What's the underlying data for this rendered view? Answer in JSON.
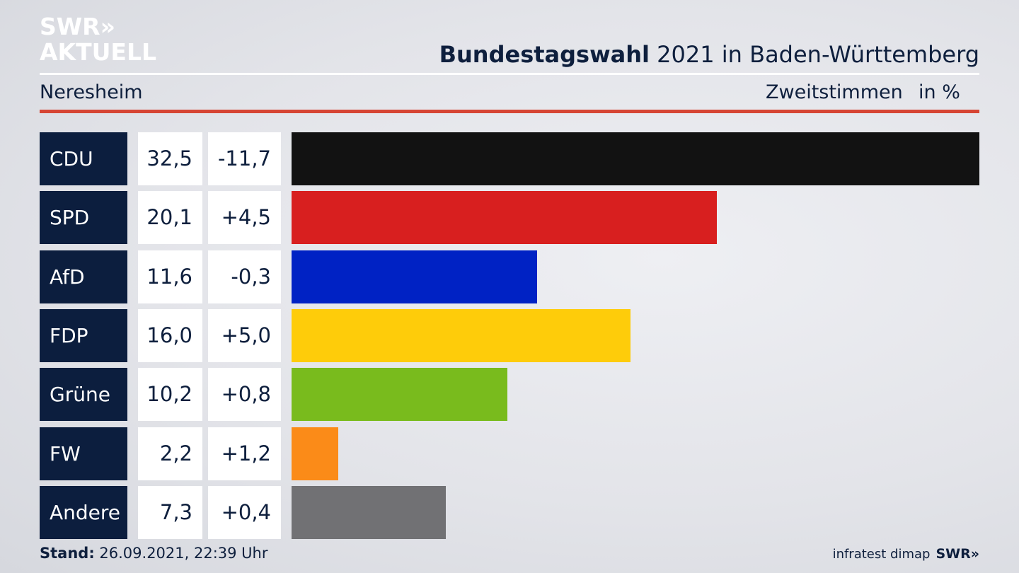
{
  "header": {
    "logo_line1": "SWR»",
    "logo_line2": "AKTUELL",
    "title_bold": "Bundestagswahl",
    "title_rest": " 2021 in Baden-Württemberg",
    "region": "Neresheim",
    "vote_type": "Zweitstimmen",
    "unit": "in %"
  },
  "footer": {
    "stand_label": "Stand:",
    "stand_value": " 26.09.2021, 22:39 Uhr",
    "source": "infratest dimap",
    "brand": "SWR»"
  },
  "chart_data": {
    "type": "bar",
    "orientation": "horizontal",
    "title": "Bundestagswahl 2021 in Baden-Württemberg",
    "subtitle": "Neresheim",
    "categories": [
      "CDU",
      "SPD",
      "AfD",
      "FDP",
      "Grüne",
      "FW",
      "Andere"
    ],
    "values": [
      32.5,
      20.1,
      11.6,
      16.0,
      10.2,
      2.2,
      7.3
    ],
    "value_labels": [
      "32,5",
      "20,1",
      "11,6",
      "16,0",
      "10,2",
      "2,2",
      "7,3"
    ],
    "changes": [
      "-11,7",
      "+4,5",
      "-0,3",
      "+5,0",
      "+0,8",
      "+1,2",
      "+0,4"
    ],
    "colors": [
      "#121212",
      "#d81f1f",
      "#0022c4",
      "#fecc0a",
      "#79bb1d",
      "#fb8b18",
      "#717174"
    ],
    "xlim": [
      0,
      32.5
    ],
    "grid": false,
    "legend": "none"
  }
}
